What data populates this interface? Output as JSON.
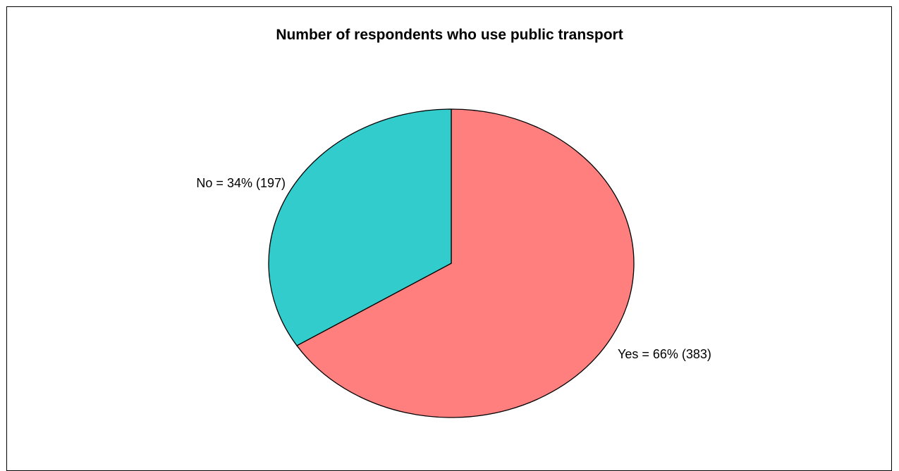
{
  "chart_data": {
    "type": "pie",
    "title": "Number of respondents who use public transport",
    "slices": [
      {
        "label": "Yes = 66% (383)",
        "value": 383,
        "percent": 66,
        "color": "#ff7f7f"
      },
      {
        "label": "No = 34% (197)",
        "value": 197,
        "percent": 34,
        "color": "#33cccc"
      }
    ],
    "start_angle_deg": 0,
    "direction": "clockwise",
    "legend": "none"
  }
}
